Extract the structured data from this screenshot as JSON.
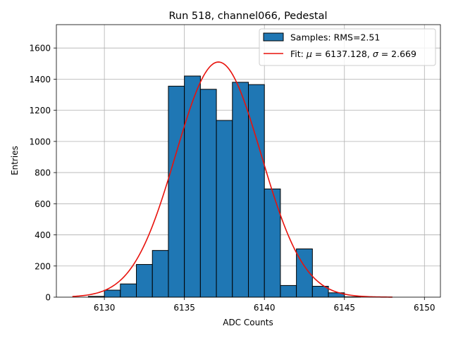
{
  "chart_data": {
    "type": "histogram",
    "title": "Run 518, channel066, Pedestal",
    "xlabel": "ADC Counts",
    "ylabel": "Entries",
    "xlim": [
      6127,
      6151
    ],
    "ylim": [
      0,
      1750
    ],
    "xticks": [
      6130,
      6135,
      6140,
      6145,
      6150
    ],
    "yticks": [
      0,
      200,
      400,
      600,
      800,
      1000,
      1200,
      1400,
      1600
    ],
    "grid": true,
    "legend_position": "top-right",
    "bins": [
      {
        "x0": 6129,
        "x1": 6130,
        "count": 5
      },
      {
        "x0": 6130,
        "x1": 6131,
        "count": 45
      },
      {
        "x0": 6131,
        "x1": 6132,
        "count": 85
      },
      {
        "x0": 6132,
        "x1": 6133,
        "count": 210
      },
      {
        "x0": 6133,
        "x1": 6134,
        "count": 300
      },
      {
        "x0": 6134,
        "x1": 6135,
        "count": 1355
      },
      {
        "x0": 6135,
        "x1": 6136,
        "count": 1420
      },
      {
        "x0": 6136,
        "x1": 6137,
        "count": 1335
      },
      {
        "x0": 6137,
        "x1": 6138,
        "count": 1135
      },
      {
        "x0": 6138,
        "x1": 6139,
        "count": 1380
      },
      {
        "x0": 6139,
        "x1": 6140,
        "count": 1365
      },
      {
        "x0": 6140,
        "x1": 6141,
        "count": 695
      },
      {
        "x0": 6141,
        "x1": 6142,
        "count": 75
      },
      {
        "x0": 6142,
        "x1": 6143,
        "count": 310
      },
      {
        "x0": 6143,
        "x1": 6144,
        "count": 70
      },
      {
        "x0": 6144,
        "x1": 6145,
        "count": 28
      },
      {
        "x0": 6145,
        "x1": 6146,
        "count": 2
      }
    ],
    "series": [
      {
        "kind": "bars",
        "label": "Samples: RMS=2.51",
        "color": "#1f77b4",
        "edge_color": "#000000"
      },
      {
        "kind": "line",
        "label_prefix": "Fit: ",
        "label_mu": "μ",
        "label_mid": " = 6137.128, ",
        "label_sigma": "σ",
        "label_suffix": " = 2.669",
        "color": "#e8120c",
        "fit_type": "gaussian",
        "mu": 6137.128,
        "sigma": 2.669,
        "amplitude": 1510,
        "x_range": [
          6128,
          6148
        ]
      }
    ]
  }
}
